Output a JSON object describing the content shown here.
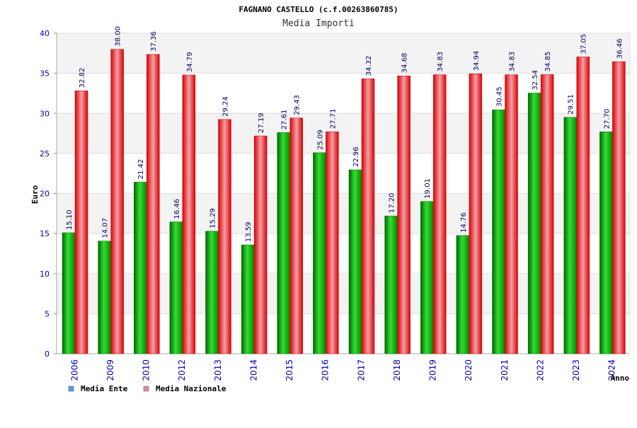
{
  "chart_data": {
    "type": "bar",
    "title": "FAGNANO CASTELLO (c.f.00263860785)",
    "subtitle": "Media Importi",
    "xlabel": "Anno",
    "ylabel": "Euro",
    "ylim": [
      0,
      40
    ],
    "ytick_step": 5,
    "categories": [
      "2006",
      "2009",
      "2010",
      "2012",
      "2013",
      "2014",
      "2015",
      "2016",
      "2017",
      "2018",
      "2019",
      "2020",
      "2021",
      "2022",
      "2023",
      "2024"
    ],
    "series": [
      {
        "name": "Media Ente",
        "color": "#00cc00",
        "values": [
          15.1,
          14.07,
          21.42,
          16.46,
          15.29,
          13.59,
          27.61,
          25.09,
          22.96,
          17.2,
          19.01,
          14.76,
          30.45,
          32.54,
          29.51,
          27.7
        ],
        "labels": [
          "15.10",
          "14.07",
          "21.42",
          "16.46",
          "15.29",
          "13.59",
          "27.61",
          "25.09",
          "22.96",
          "17.20",
          "19.01",
          "14.76",
          "30.45",
          "32.54",
          "29.51",
          "27.70"
        ]
      },
      {
        "name": "Media Nazionale",
        "color": "#ee1111",
        "values": [
          32.82,
          38.0,
          37.36,
          34.79,
          29.24,
          27.19,
          29.43,
          27.71,
          34.32,
          34.68,
          34.83,
          34.94,
          34.83,
          34.85,
          37.05,
          36.46
        ],
        "labels": [
          "32.82",
          "38.00",
          "37.36",
          "34.79",
          "29.24",
          "27.19",
          "29.43",
          "27.71",
          "34.32",
          "34.68",
          "34.83",
          "34.94",
          "34.83",
          "34.85",
          "37.05",
          "36.46"
        ]
      }
    ],
    "legend": {
      "placement": "bottom-left",
      "items": [
        {
          "label": "Media Ente",
          "color": "#5599ee"
        },
        {
          "label": "Media Nazionale",
          "color": "#dd88aa"
        }
      ]
    },
    "grid": true
  }
}
